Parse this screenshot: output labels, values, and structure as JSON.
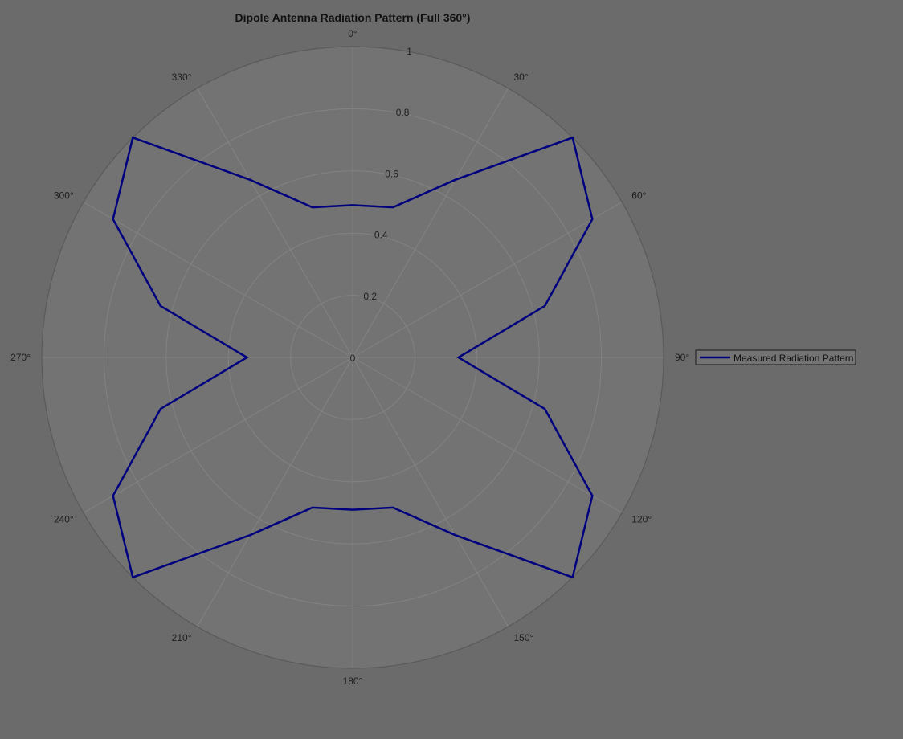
{
  "chart_data": {
    "type": "polar-line",
    "title": "Dipole Antenna Radiation Pattern (Full 360°)",
    "theta_zero_location": "top",
    "theta_direction": "clockwise",
    "rlim": [
      0,
      1
    ],
    "r_ticks": [
      0,
      0.2,
      0.4,
      0.6,
      0.8,
      1
    ],
    "r_tick_labels": [
      "0",
      "0.2",
      "0.4",
      "0.6",
      "0.8",
      "1"
    ],
    "theta_ticks_deg": [
      0,
      30,
      60,
      90,
      120,
      150,
      180,
      210,
      240,
      270,
      300,
      330
    ],
    "theta_tick_labels": [
      "0°",
      "30°",
      "60°",
      "90°",
      "120°",
      "150°",
      "180°",
      "210°",
      "240°",
      "270°",
      "300°",
      "330°"
    ],
    "grid": true,
    "legend": {
      "entries": [
        "Measured Radiation Pattern"
      ],
      "location": "right"
    },
    "series": [
      {
        "name": "Measured Radiation Pattern",
        "color": "#00007f",
        "theta_deg": [
          0,
          15,
          30,
          45,
          60,
          75,
          90,
          105,
          120,
          135,
          150,
          165,
          180,
          195,
          210,
          225,
          240,
          255,
          270,
          285,
          300,
          315,
          330,
          345,
          360
        ],
        "r": [
          0.49,
          0.5,
          0.66,
          1.0,
          0.89,
          0.64,
          0.34,
          0.64,
          0.89,
          1.0,
          0.66,
          0.5,
          0.49,
          0.5,
          0.66,
          1.0,
          0.89,
          0.64,
          0.34,
          0.64,
          0.89,
          1.0,
          0.66,
          0.5,
          0.49
        ]
      }
    ]
  },
  "colors": {
    "figure_background": "#6b6b6b",
    "axes_background": "#737373",
    "grid": "#838383",
    "outer_circle": "#5a5a5a",
    "line": "#00007f"
  }
}
